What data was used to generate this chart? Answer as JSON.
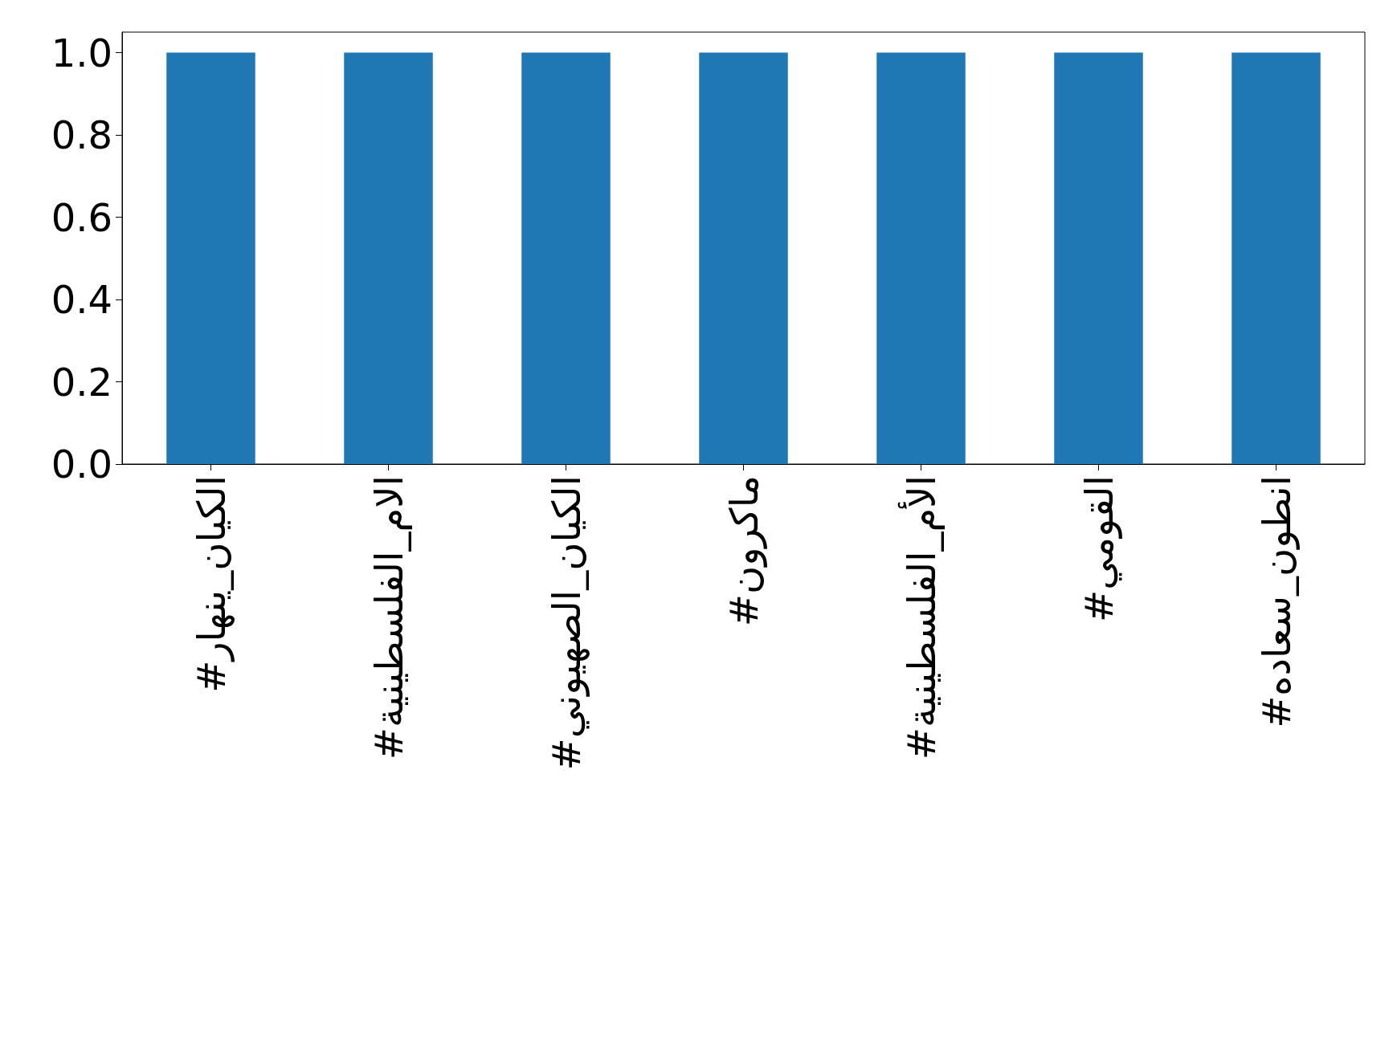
{
  "chart_data": {
    "type": "bar",
    "categories": [
      "#الكيان_ينهار",
      "#الام_الفلسطينية",
      "#الكيان_الصهيوني",
      "#ماكرون",
      "#الأم_الفلسطينية",
      "#القومي",
      "#انطون_سعاده"
    ],
    "values": [
      1,
      1,
      1,
      1,
      1,
      1,
      1
    ],
    "color": "#1f77b4",
    "ylim": [
      0,
      1.05
    ],
    "yticks": [
      {
        "value": 0,
        "label": "0.0"
      },
      {
        "value": 0.2,
        "label": "0.2"
      },
      {
        "value": 0.4,
        "label": "0.4"
      },
      {
        "value": 0.6,
        "label": "0.6"
      },
      {
        "value": 0.8,
        "label": "0.8"
      },
      {
        "value": 1,
        "label": "1.0"
      }
    ],
    "grid": false
  }
}
